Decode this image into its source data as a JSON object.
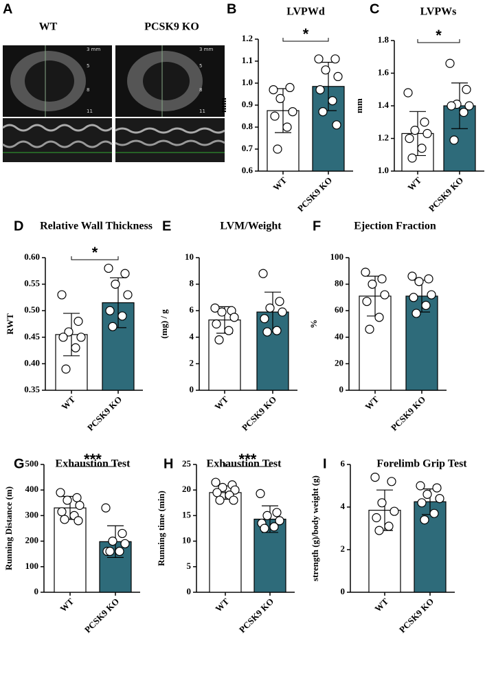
{
  "panel_a": {
    "letter": "A",
    "labels": [
      "WT",
      "PCSK9 KO"
    ],
    "scale_marks": [
      "3 mm",
      "5",
      "8",
      "11"
    ]
  },
  "chart_data": [
    {
      "type": "bar",
      "letter": "B",
      "title": "LVPWd",
      "ylabel": "mm",
      "categories": [
        "WT",
        "PCSK9 KO"
      ],
      "colors": [
        "#ffffff",
        "#2e6b7a"
      ],
      "values": [
        0.875,
        0.985
      ],
      "errors": [
        0.1,
        0.11
      ],
      "points": [
        [
          0.97,
          0.98,
          0.93,
          0.87,
          0.85,
          0.8,
          0.7
        ],
        [
          1.11,
          1.11,
          1.06,
          1.03,
          0.97,
          0.92,
          0.87,
          0.81
        ]
      ],
      "ylim": [
        0.6,
        1.2
      ],
      "yticks": [
        0.6,
        0.7,
        0.8,
        0.9,
        {
          "value": 1,
          "label": "1.0"
        },
        1.1,
        1.2
      ],
      "significance": "*"
    },
    {
      "type": "bar",
      "letter": "C",
      "title": "LVPWs",
      "ylabel": "mm",
      "categories": [
        "WT",
        "PCSK9 KO"
      ],
      "colors": [
        "#ffffff",
        "#2e6b7a"
      ],
      "values": [
        1.23,
        1.4
      ],
      "errors": [
        0.135,
        0.14
      ],
      "points": [
        [
          1.48,
          1.3,
          1.25,
          1.23,
          1.2,
          1.14,
          1.08
        ],
        [
          1.66,
          1.5,
          1.41,
          1.4,
          1.4,
          1.36,
          1.19
        ]
      ],
      "ylim": [
        1.0,
        1.8
      ],
      "yticks": [
        {
          "value": 1,
          "label": "1.0"
        },
        1.2,
        1.4,
        1.6,
        1.8
      ],
      "significance": "*"
    },
    {
      "type": "bar",
      "letter": "D",
      "title": "Relative Wall Thickness",
      "ylabel": "RWT",
      "categories": [
        "WT",
        "PCSK9 KO"
      ],
      "colors": [
        "#ffffff",
        "#2e6b7a"
      ],
      "values": [
        0.455,
        0.515
      ],
      "errors": [
        0.04,
        0.047
      ],
      "points": [
        [
          0.53,
          0.48,
          0.46,
          0.45,
          0.45,
          0.43,
          0.39
        ],
        [
          0.58,
          0.57,
          0.55,
          0.53,
          0.5,
          0.49,
          0.47
        ]
      ],
      "ylim": [
        0.35,
        0.6
      ],
      "yticks": [
        0.35,
        {
          "value": 0.4,
          "label": "0.40"
        },
        0.45,
        {
          "value": 0.5,
          "label": "0.50"
        },
        0.55,
        {
          "value": 0.6,
          "label": "0.60"
        }
      ],
      "significance": "*"
    },
    {
      "type": "bar",
      "letter": "E",
      "title": "LVM/Weight",
      "ylabel": "(mg) / g",
      "categories": [
        "WT",
        "PCSK9 KO"
      ],
      "colors": [
        "#ffffff",
        "#2e6b7a"
      ],
      "values": [
        5.3,
        5.9
      ],
      "errors": [
        1.0,
        1.5
      ],
      "points": [
        [
          6.2,
          6.0,
          5.9,
          5.5,
          5.0,
          4.5,
          3.8
        ],
        [
          8.8,
          6.7,
          6.2,
          5.9,
          5.4,
          4.5,
          4.4
        ]
      ],
      "ylim": [
        0,
        10
      ],
      "yticks": [
        0,
        2,
        4,
        6,
        8,
        10
      ]
    },
    {
      "type": "bar",
      "letter": "F",
      "title": "Ejection Fraction",
      "ylabel": "%",
      "categories": [
        "WT",
        "PCSK9 KO"
      ],
      "colors": [
        "#ffffff",
        "#2e6b7a"
      ],
      "values": [
        71,
        71
      ],
      "errors": [
        15,
        12
      ],
      "points": [
        [
          89,
          84,
          80,
          72,
          67,
          55,
          46
        ],
        [
          86,
          84,
          82,
          72,
          70,
          64,
          58
        ]
      ],
      "ylim": [
        0,
        100
      ],
      "yticks": [
        0,
        20,
        40,
        60,
        80,
        100
      ]
    },
    {
      "type": "bar",
      "letter": "G",
      "title": "Exhaustion Test",
      "ylabel": "Running Distance (m)",
      "categories": [
        "WT",
        "PCSK9 KO"
      ],
      "colors": [
        "#ffffff",
        "#2e6b7a"
      ],
      "values": [
        330,
        198
      ],
      "errors": [
        45,
        62
      ],
      "points": [
        [
          390,
          370,
          360,
          340,
          315,
          300,
          285,
          280
        ],
        [
          330,
          230,
          200,
          190,
          160,
          160,
          160
        ]
      ],
      "ylim": [
        0,
        500
      ],
      "yticks": [
        0,
        100,
        200,
        300,
        400,
        500
      ],
      "significance": "***"
    },
    {
      "type": "bar",
      "letter": "H",
      "title": "Exhaustion Test",
      "ylabel": "Running time (min)",
      "categories": [
        "WT",
        "PCSK9 KO"
      ],
      "colors": [
        "#ffffff",
        "#2e6b7a"
      ],
      "values": [
        19.5,
        14.3
      ],
      "errors": [
        1.3,
        2.6
      ],
      "points": [
        [
          21.5,
          21,
          20.5,
          20,
          19.5,
          19,
          18,
          18
        ],
        [
          19.3,
          15.6,
          15,
          14,
          13.5,
          12.8,
          12.5
        ]
      ],
      "ylim": [
        0,
        25
      ],
      "yticks": [
        0,
        5,
        10,
        15,
        20,
        25
      ],
      "significance": "***"
    },
    {
      "type": "bar",
      "letter": "I",
      "title": "Forelimb Grip Test",
      "ylabel": "strength (g)/body weight (g)",
      "categories": [
        "WT",
        "PCSK9 KO"
      ],
      "colors": [
        "#ffffff",
        "#2e6b7a"
      ],
      "values": [
        3.85,
        4.25
      ],
      "errors": [
        0.95,
        0.6
      ],
      "points": [
        [
          5.4,
          5.2,
          4.2,
          3.8,
          3.5,
          3.1,
          2.9
        ],
        [
          5.0,
          4.9,
          4.6,
          4.4,
          4.2,
          3.7,
          3.4
        ]
      ],
      "ylim": [
        0,
        6
      ],
      "yticks": [
        0,
        2,
        4,
        6
      ]
    }
  ]
}
